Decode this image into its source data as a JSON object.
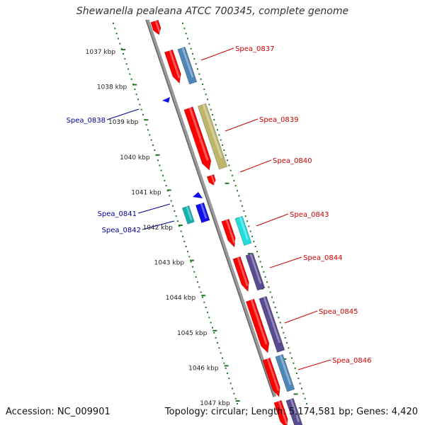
{
  "title": "Shewanella pealeana ATCC 700345, complete genome",
  "footer": {
    "accession": "Accession: NC_009901",
    "topology": "Topology: circular; Length: 5,174,581 bp; Genes: 4,420"
  },
  "colors": {
    "forward_label": "#cc0000",
    "reverse_label": "#000099",
    "tick": "#1f7a1f",
    "backbone": "#888888",
    "cds_red": "#ff0000",
    "steel": "#4f86b8",
    "olive": "#bdb56a",
    "cyan": "#22dddd",
    "teal": "#12b0b0",
    "blue": "#1010ee",
    "purple": "#5a4a90"
  },
  "kbp_ticks": [
    "1037 kbp",
    "1038 kbp",
    "1039 kbp",
    "1040 kbp",
    "1041 kbp",
    "1042 kbp",
    "1043 kbp",
    "1044 kbp",
    "1045 kbp",
    "1046 kbp",
    "1047 kbp"
  ],
  "gene_labels": [
    {
      "name": "Spea_0837",
      "strand": "forward"
    },
    {
      "name": "Spea_0838",
      "strand": "reverse"
    },
    {
      "name": "Spea_0839",
      "strand": "forward"
    },
    {
      "name": "Spea_0840",
      "strand": "forward"
    },
    {
      "name": "Spea_0841",
      "strand": "reverse"
    },
    {
      "name": "Spea_0842",
      "strand": "reverse"
    },
    {
      "name": "Spea_0843",
      "strand": "forward"
    },
    {
      "name": "Spea_0844",
      "strand": "forward"
    },
    {
      "name": "Spea_0845",
      "strand": "forward"
    },
    {
      "name": "Spea_0846",
      "strand": "forward"
    }
  ]
}
